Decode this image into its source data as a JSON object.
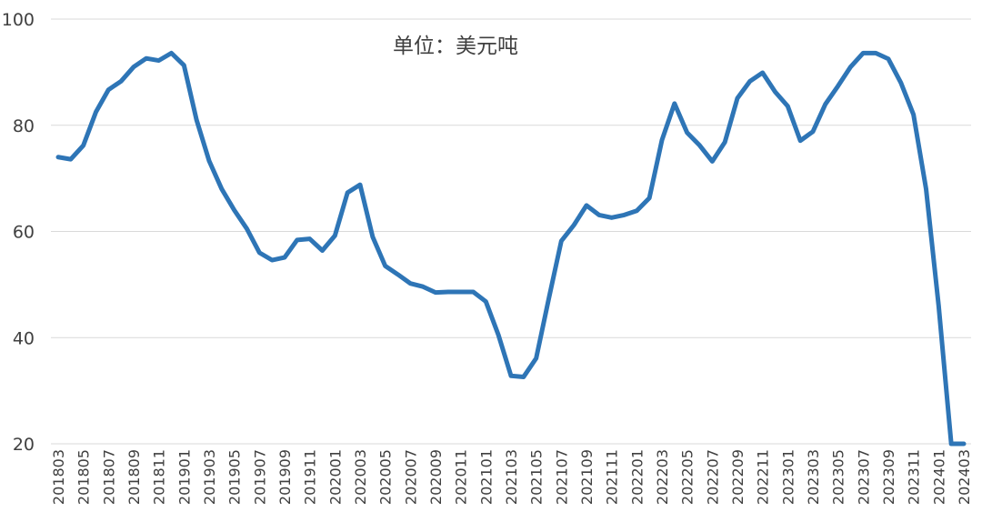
{
  "chart_data": {
    "type": "line",
    "title": "",
    "annotation": "单位：美元吨",
    "xlabel": "",
    "ylabel": "",
    "ylim": [
      20,
      100
    ],
    "yticks": [
      20,
      40,
      60,
      80,
      100
    ],
    "grid": true,
    "legend": "none",
    "color": "#2e75b6",
    "x": [
      "201803",
      "201804",
      "201805",
      "201806",
      "201807",
      "201808",
      "201809",
      "201810",
      "201811",
      "201812",
      "201901",
      "201902",
      "201903",
      "201904",
      "201905",
      "201906",
      "201907",
      "201908",
      "201909",
      "201910",
      "201911",
      "201912",
      "202001",
      "202002",
      "202003",
      "202004",
      "202005",
      "202006",
      "202007",
      "202008",
      "202009",
      "202010",
      "202011",
      "202012",
      "202101",
      "202102",
      "202103",
      "202104",
      "202105",
      "202106",
      "202107",
      "202108",
      "202109",
      "202110",
      "202111",
      "202112",
      "202201",
      "202202",
      "202203",
      "202204",
      "202205",
      "202206",
      "202207",
      "202208",
      "202209",
      "202210",
      "202211",
      "202212",
      "202301",
      "202302",
      "202303",
      "202304",
      "202305",
      "202306",
      "202307",
      "202308",
      "202309",
      "202310",
      "202311",
      "202312",
      "202401",
      "202402",
      "202403"
    ],
    "xtick_labels": [
      "201803",
      "201805",
      "201807",
      "201809",
      "201811",
      "201901",
      "201903",
      "201905",
      "201907",
      "201909",
      "201911",
      "202001",
      "202003",
      "202005",
      "202007",
      "202009",
      "202011",
      "202101",
      "202103",
      "202105",
      "202107",
      "202109",
      "202111",
      "202201",
      "202203",
      "202205",
      "202207",
      "202209",
      "202211",
      "202301",
      "202303",
      "202305",
      "202307",
      "202309",
      "202311",
      "202401",
      "202403"
    ],
    "series": [
      {
        "values": [
          74,
          73.6,
          76.2,
          82.5,
          86.7,
          88.3,
          91,
          92.6,
          92.2,
          93.6,
          91.3,
          81,
          73.3,
          68,
          64,
          60.5,
          56,
          54.6,
          55.1,
          58.4,
          58.6,
          56.4,
          59.2,
          67.3,
          68.8,
          59,
          53.5,
          51.9,
          50.2,
          49.6,
          48.5,
          48.6,
          48.6,
          48.6,
          46.8,
          40.5,
          32.8,
          32.6,
          36.1,
          47.3,
          58.2,
          61.2,
          64.9,
          63.1,
          62.6,
          63.1,
          63.9,
          66.3,
          77.2,
          84.1,
          78.6,
          76.2,
          73.2,
          76.8,
          85.1,
          88.3,
          89.9,
          86.3,
          83.6,
          77.1,
          78.8,
          84,
          87.4,
          91,
          93.6,
          93.6,
          92.5,
          88,
          82,
          68,
          46,
          20,
          20
        ]
      }
    ]
  }
}
